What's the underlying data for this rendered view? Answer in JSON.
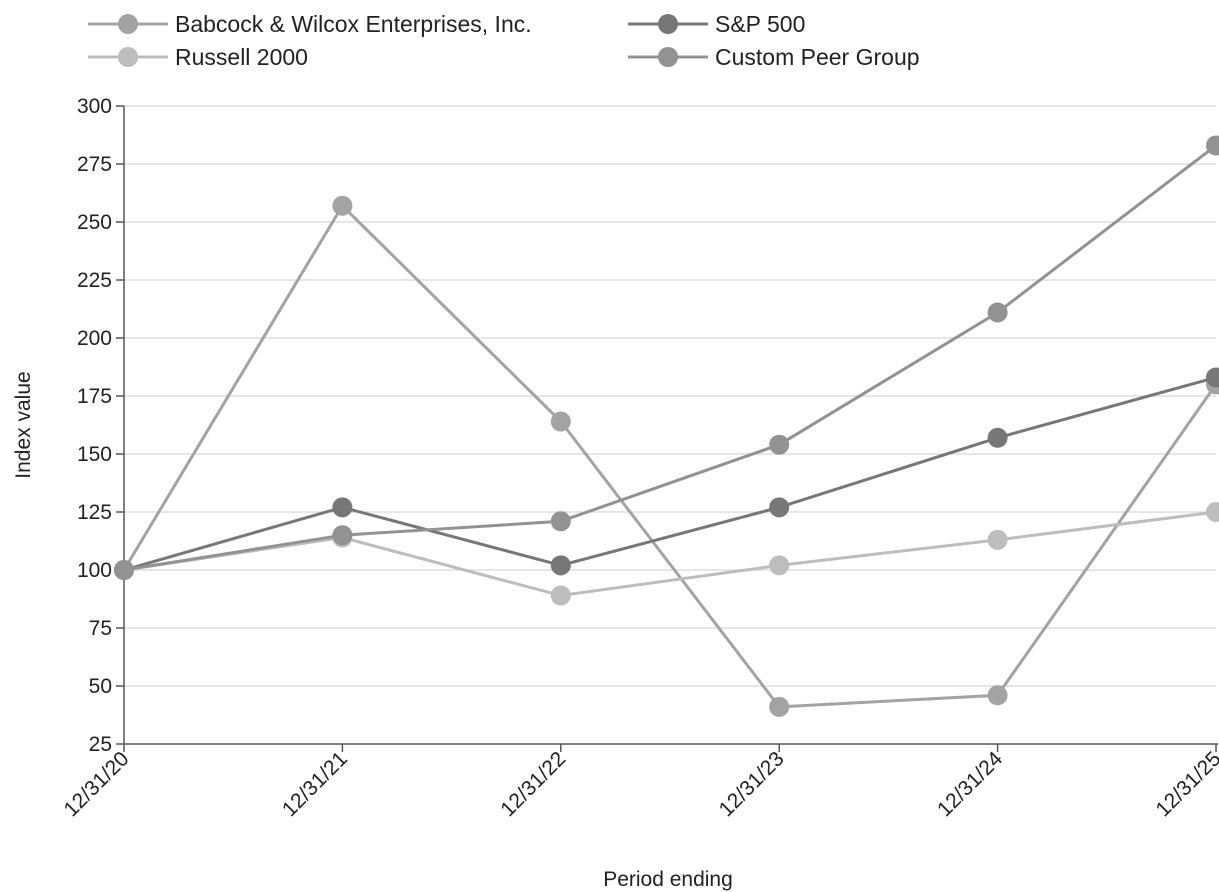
{
  "chart_data": {
    "type": "line",
    "title": "",
    "xlabel": "Period ending",
    "ylabel": "Index value",
    "categories": [
      "12/31/20",
      "12/31/21",
      "12/31/22",
      "12/31/23",
      "12/31/24",
      "12/31/25"
    ],
    "ylim": [
      25,
      300
    ],
    "yticks": [
      25,
      50,
      75,
      100,
      125,
      150,
      175,
      200,
      225,
      250,
      275,
      300
    ],
    "grid": true,
    "legend_position": "top",
    "series": [
      {
        "name": "Babcock & Wilcox Enterprises, Inc.",
        "color": "#a3a3a3",
        "values": [
          100,
          257,
          164,
          41,
          46,
          180
        ]
      },
      {
        "name": "S&P 500",
        "color": "#777777",
        "values": [
          100,
          127,
          102,
          127,
          157,
          183
        ]
      },
      {
        "name": "Russell 2000",
        "color": "#bdbdbd",
        "values": [
          100,
          114,
          89,
          102,
          113,
          125
        ]
      },
      {
        "name": "Custom Peer Group",
        "color": "#929292",
        "values": [
          100,
          115,
          121,
          154,
          211,
          283
        ]
      }
    ]
  }
}
